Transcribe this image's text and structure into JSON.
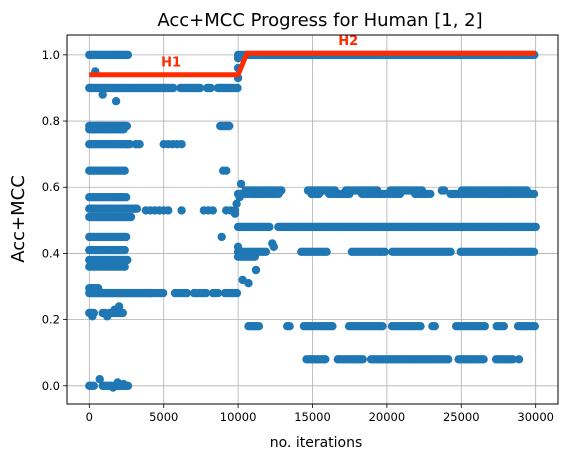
{
  "chart_data": {
    "type": "scatter",
    "title": "Acc+MCC Progress for Human [1, 2]",
    "xlabel": "no. iterations",
    "ylabel": "Acc+MCC",
    "xlim": [
      -1500,
      31500
    ],
    "ylim": [
      -0.055,
      1.06
    ],
    "grid": true,
    "x_ticks": [
      0,
      5000,
      10000,
      15000,
      20000,
      25000,
      30000
    ],
    "y_ticks": [
      0.0,
      0.2,
      0.4,
      0.6,
      0.8,
      1.0
    ],
    "x_tick_labels": [
      "0",
      "5000",
      "10000",
      "15000",
      "20000",
      "25000",
      "30000"
    ],
    "y_tick_labels": [
      "0.0",
      "0.2",
      "0.4",
      "0.6",
      "0.8",
      "1.0"
    ],
    "marker_color": "#1f77b4",
    "line_color": "#ff2a00",
    "phase_line": {
      "x": [
        0,
        10000,
        10600,
        30000
      ],
      "y": [
        0.94,
        0.94,
        1.005,
        1.005
      ]
    },
    "annotations": [
      {
        "text": "H1",
        "x": 5500,
        "y": 0.965
      },
      {
        "text": "H2",
        "x": 17400,
        "y": 1.03
      }
    ],
    "bands": [
      {
        "y": 1.0,
        "x_start": 0,
        "x_end": 2600,
        "step": 70,
        "gaps": []
      },
      {
        "y": 1.0,
        "x_start": 10000,
        "x_end": 30000,
        "step": 110,
        "gaps": []
      },
      {
        "y": 0.9,
        "x_start": 0,
        "x_end": 10000,
        "step": 120,
        "gaps": [
          [
            5700,
            6100
          ],
          [
            7500,
            7800
          ],
          [
            8200,
            8600
          ]
        ]
      },
      {
        "y": 0.785,
        "x_start": 0,
        "x_end": 2600,
        "step": 90,
        "gaps": []
      },
      {
        "y": 0.785,
        "x_start": 8800,
        "x_end": 9400,
        "step": 100,
        "gaps": []
      },
      {
        "y": 0.775,
        "x_start": 0,
        "x_end": 2400,
        "step": 110,
        "gaps": []
      },
      {
        "y": 0.73,
        "x_start": 0,
        "x_end": 3400,
        "step": 130,
        "gaps": [
          [
            2800,
            3000
          ]
        ]
      },
      {
        "y": 0.73,
        "x_start": 5000,
        "x_end": 6200,
        "step": 300,
        "gaps": []
      },
      {
        "y": 0.65,
        "x_start": 0,
        "x_end": 2500,
        "step": 140,
        "gaps": []
      },
      {
        "y": 0.65,
        "x_start": 9000,
        "x_end": 9200,
        "step": 200,
        "gaps": []
      },
      {
        "y": 0.57,
        "x_start": 0,
        "x_end": 2500,
        "step": 130,
        "gaps": []
      },
      {
        "y": 0.59,
        "x_start": 10500,
        "x_end": 29500,
        "step": 150,
        "gaps": [
          [
            13000,
            14600
          ],
          [
            16600,
            17200
          ],
          [
            19500,
            20200
          ],
          [
            22500,
            23600
          ],
          [
            24000,
            24900
          ]
        ]
      },
      {
        "y": 0.58,
        "x_start": 10000,
        "x_end": 30000,
        "step": 170,
        "gaps": [
          [
            12800,
            14800
          ],
          [
            15500,
            16000
          ],
          [
            17500,
            18200
          ],
          [
            21000,
            21800
          ],
          [
            23000,
            24200
          ]
        ]
      },
      {
        "y": 0.535,
        "x_start": 0,
        "x_end": 3200,
        "step": 100,
        "gaps": []
      },
      {
        "y": 0.53,
        "x_start": 3800,
        "x_end": 10000,
        "step": 300,
        "gaps": [
          [
            5400,
            6000
          ],
          [
            6400,
            7600
          ],
          [
            8400,
            9000
          ]
        ]
      },
      {
        "y": 0.51,
        "x_start": 0,
        "x_end": 2800,
        "step": 100,
        "gaps": []
      },
      {
        "y": 0.48,
        "x_start": 10000,
        "x_end": 30000,
        "step": 100,
        "gaps": [
          [
            12200,
            12600
          ]
        ]
      },
      {
        "y": 0.45,
        "x_start": 0,
        "x_end": 2500,
        "step": 130,
        "gaps": []
      },
      {
        "y": 0.41,
        "x_start": 0,
        "x_end": 2500,
        "step": 140,
        "gaps": []
      },
      {
        "y": 0.405,
        "x_start": 10000,
        "x_end": 30000,
        "step": 170,
        "gaps": [
          [
            12000,
            14200
          ],
          [
            16000,
            17600
          ],
          [
            20000,
            20300
          ],
          [
            24400,
            24800
          ]
        ]
      },
      {
        "y": 0.39,
        "x_start": 10000,
        "x_end": 11200,
        "step": 140,
        "gaps": []
      },
      {
        "y": 0.38,
        "x_start": 0,
        "x_end": 2600,
        "step": 150,
        "gaps": []
      },
      {
        "y": 0.36,
        "x_start": 0,
        "x_end": 2500,
        "step": 170,
        "gaps": []
      },
      {
        "y": 0.295,
        "x_start": 0,
        "x_end": 600,
        "step": 100,
        "gaps": []
      },
      {
        "y": 0.28,
        "x_start": 0,
        "x_end": 4200,
        "step": 90,
        "gaps": []
      },
      {
        "y": 0.28,
        "x_start": 4000,
        "x_end": 10000,
        "step": 160,
        "gaps": [
          [
            5000,
            5600
          ],
          [
            6700,
            7000
          ],
          [
            8000,
            8200
          ],
          [
            8800,
            9000
          ]
        ]
      },
      {
        "y": 0.22,
        "x_start": 0,
        "x_end": 2300,
        "step": 150,
        "gaps": [
          [
            400,
            800
          ],
          [
            1100,
            1300
          ]
        ]
      },
      {
        "y": 0.18,
        "x_start": 10700,
        "x_end": 11400,
        "step": 140,
        "gaps": []
      },
      {
        "y": 0.18,
        "x_start": 13300,
        "x_end": 30000,
        "step": 160,
        "gaps": [
          [
            13500,
            14300
          ],
          [
            16400,
            17300
          ],
          [
            19800,
            20200
          ],
          [
            22400,
            23000
          ],
          [
            23300,
            24500
          ],
          [
            26600,
            27300
          ],
          [
            28000,
            28800
          ]
        ]
      },
      {
        "y": 0.08,
        "x_start": 14600,
        "x_end": 29000,
        "step": 140,
        "gaps": [
          [
            15900,
            16600
          ],
          [
            18400,
            18800
          ],
          [
            24200,
            24800
          ],
          [
            26600,
            27200
          ],
          [
            28600,
            28800
          ]
        ]
      },
      {
        "y": 0.0,
        "x_start": 0,
        "x_end": 2600,
        "step": 100,
        "gaps": [
          [
            400,
            800
          ],
          [
            1600,
            1800
          ]
        ]
      }
    ],
    "extra_points": [
      [
        10000,
        0.93
      ],
      [
        10000,
        0.96
      ],
      [
        10000,
        0.99
      ],
      [
        10000,
        0.42
      ],
      [
        10200,
        0.61
      ],
      [
        10300,
        0.32
      ],
      [
        10700,
        0.31
      ],
      [
        11200,
        0.35
      ],
      [
        12300,
        0.43
      ],
      [
        12400,
        0.42
      ],
      [
        8900,
        0.45
      ],
      [
        9800,
        0.52
      ],
      [
        9900,
        0.55
      ],
      [
        10100,
        0.57
      ],
      [
        700,
        0.02
      ],
      [
        1600,
        -0.005
      ],
      [
        1900,
        0.01
      ],
      [
        2300,
        0.005
      ],
      [
        200,
        0.21
      ],
      [
        1200,
        0.21
      ],
      [
        1700,
        0.23
      ],
      [
        2000,
        0.24
      ],
      [
        400,
        0.95
      ],
      [
        900,
        0.88
      ],
      [
        1800,
        0.86
      ]
    ]
  }
}
